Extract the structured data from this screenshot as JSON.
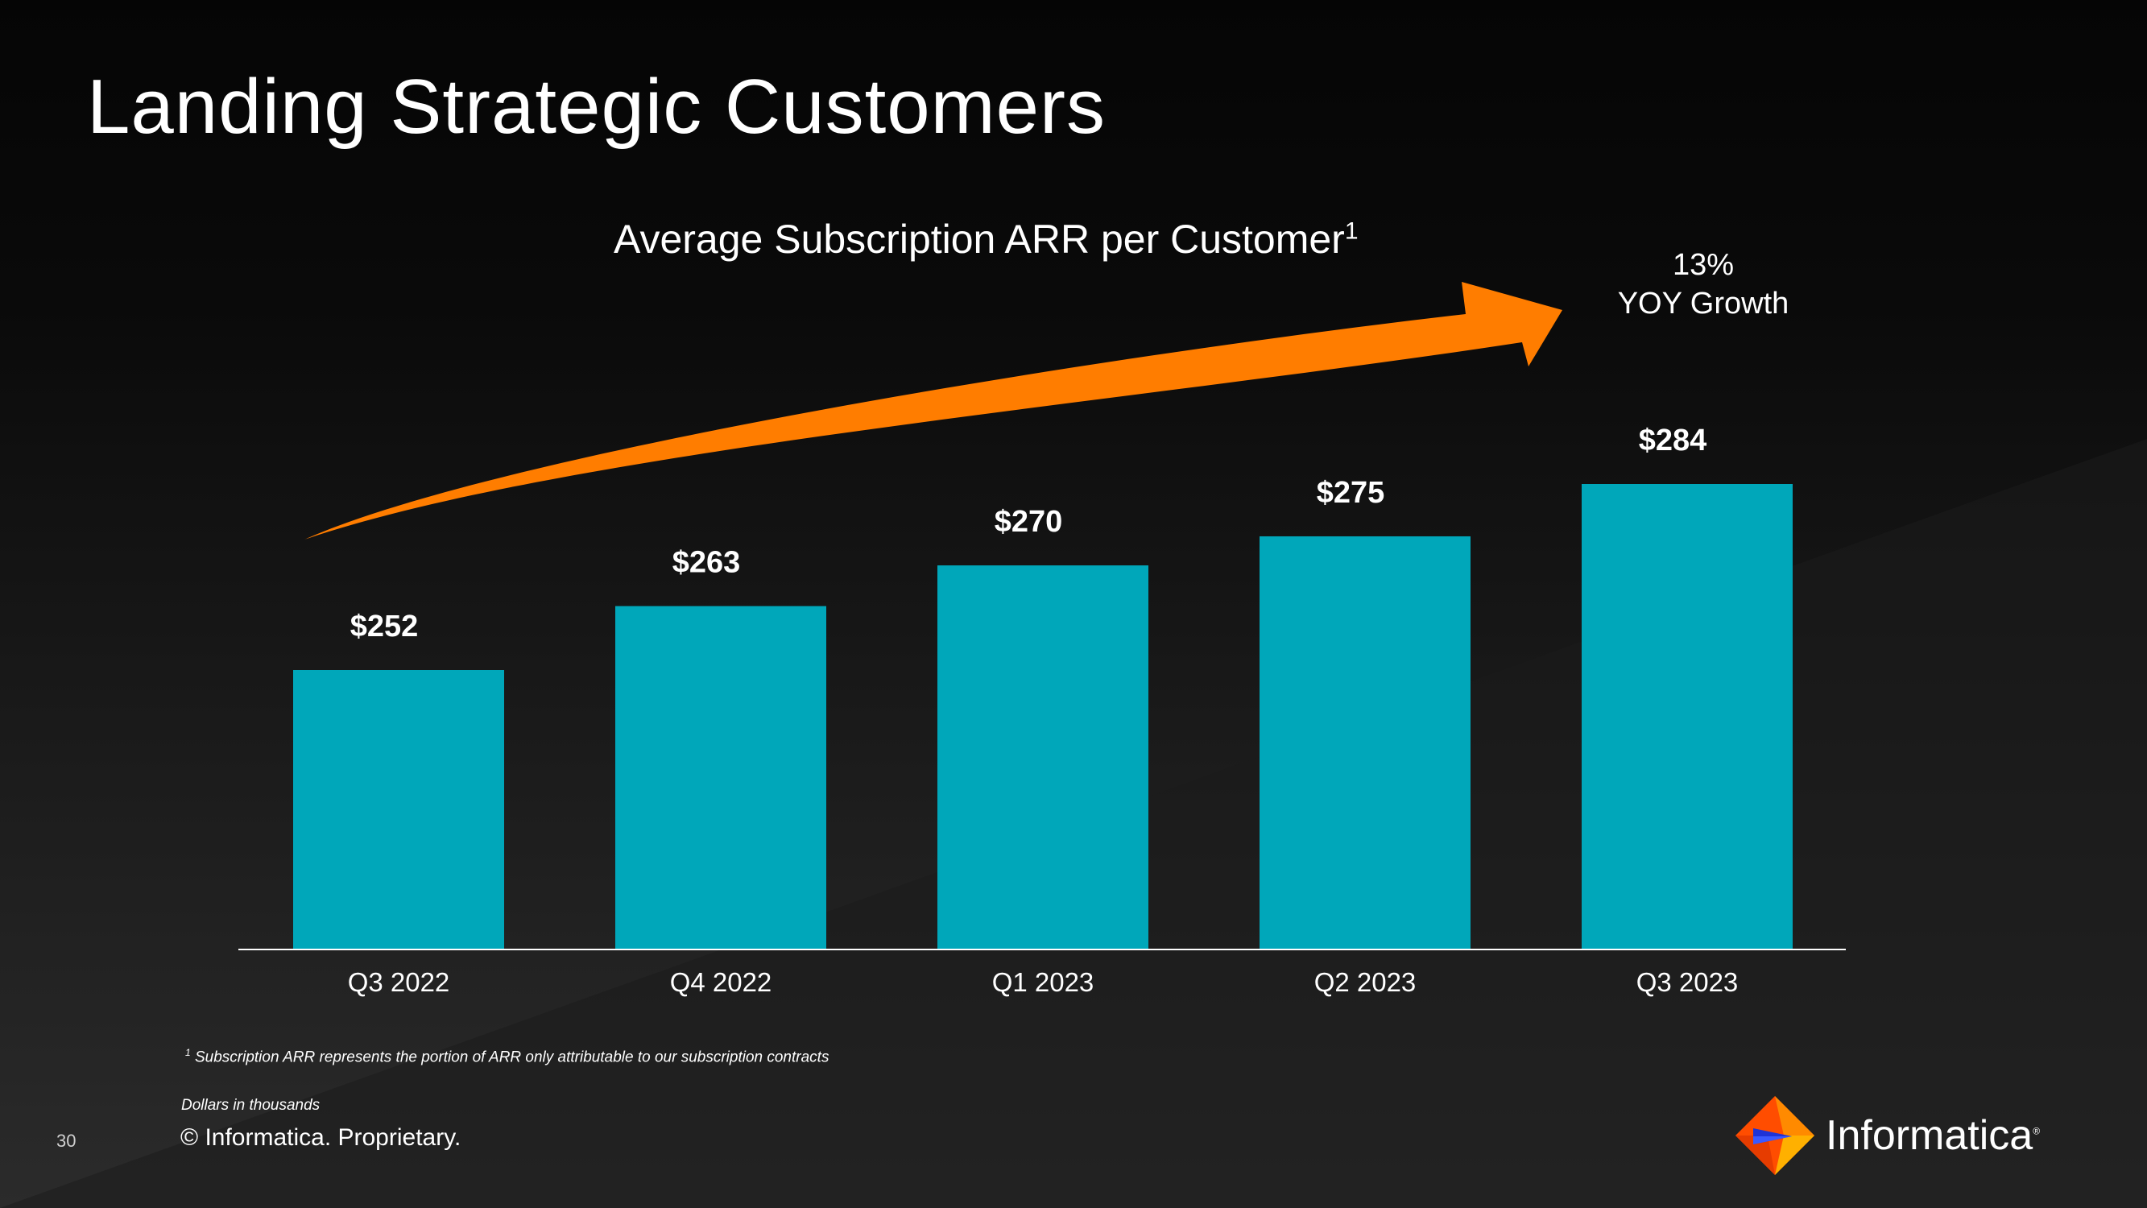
{
  "slide": {
    "title": "Landing Strategic Customers",
    "page_number": "30",
    "copyright": "© Informatica. Proprietary.",
    "footnote_marker": "1",
    "footnote": "Subscription ARR represents the portion of ARR only attributable to our subscription contracts",
    "units_note": "Dollars in thousands",
    "brand": "Informatica",
    "brand_mark": "®",
    "growth_value": "13%",
    "growth_label": "YOY Growth"
  },
  "colors": {
    "bar": "#00A7BA",
    "arrow": "#FF7D00",
    "axis": "#ffffff"
  },
  "chart_data": {
    "type": "bar",
    "title": "Average Subscription ARR per Customer",
    "title_superscript": "1",
    "categories": [
      "Q3 2022",
      "Q4 2022",
      "Q1 2023",
      "Q2 2023",
      "Q3 2023"
    ],
    "values": [
      252,
      263,
      270,
      275,
      284
    ],
    "data_labels": [
      "$252",
      "$263",
      "$270",
      "$275",
      "$284"
    ],
    "xlabel": "",
    "ylabel": "",
    "grid": false,
    "legend": "none"
  }
}
